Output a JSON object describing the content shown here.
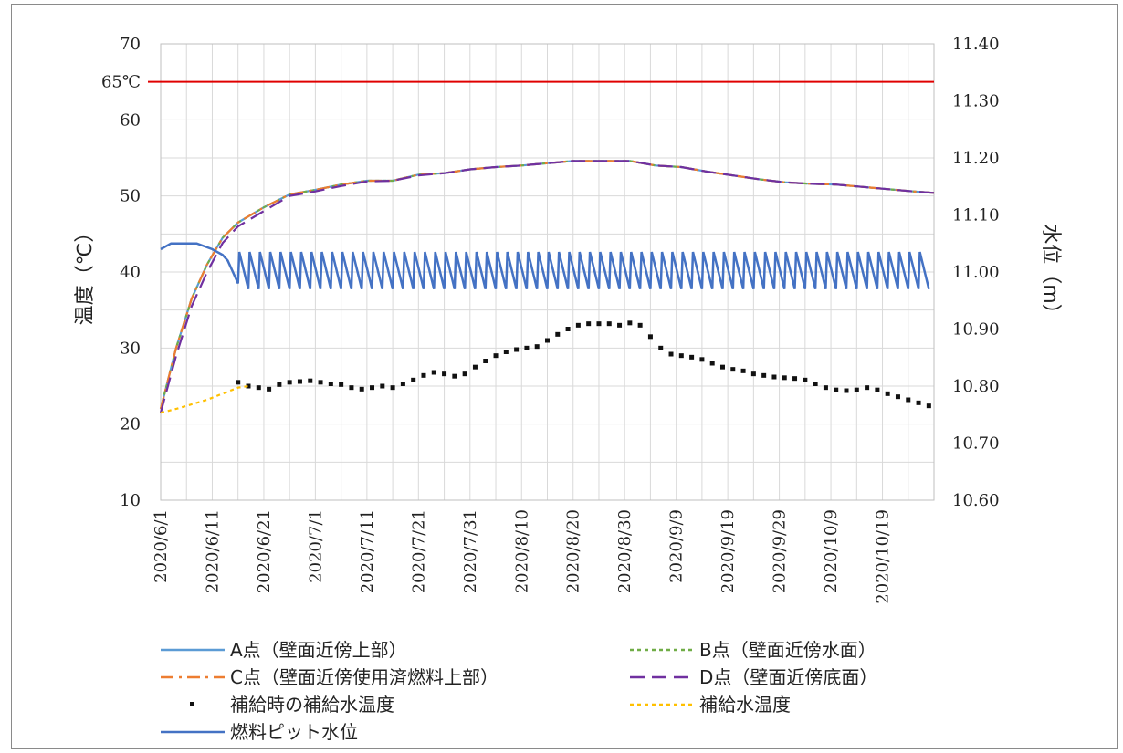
{
  "chart_data": {
    "type": "line",
    "x_start": "2020/6/1",
    "x_end": "2020/10/29",
    "x_tick_labels": [
      "2020/6/1",
      "2020/6/11",
      "2020/6/21",
      "2020/7/1",
      "2020/7/11",
      "2020/7/21",
      "2020/7/31",
      "2020/8/10",
      "2020/8/20",
      "2020/8/30",
      "2020/9/9",
      "2020/9/19",
      "2020/9/29",
      "2020/10/9",
      "2020/10/19"
    ],
    "y_left": {
      "label": "温度（℃）",
      "min": 10,
      "max": 70,
      "ticks": [
        "70",
        "60",
        "50",
        "40",
        "30",
        "20",
        "10"
      ]
    },
    "y_right": {
      "label": "水位（m）",
      "min": 10.6,
      "max": 11.4,
      "ticks": [
        "11.40",
        "11.30",
        "11.20",
        "11.10",
        "11.00",
        "10.90",
        "10.80",
        "10.70",
        "10.60"
      ]
    },
    "reference_line": {
      "value": 65,
      "label": "65℃",
      "color": "#e00000"
    },
    "grid": true,
    "legend_placement": "bottom",
    "series": [
      {
        "name": "A点（壁面近傍上部）",
        "axis": "left",
        "style": "solid",
        "color": "#5b9bd5",
        "points": [
          [
            "2020/6/1",
            22
          ],
          [
            "2020/6/4",
            30
          ],
          [
            "2020/6/7",
            36.5
          ],
          [
            "2020/6/10",
            41
          ],
          [
            "2020/6/13",
            44.5
          ],
          [
            "2020/6/16",
            46.5
          ],
          [
            "2020/6/21",
            48.5
          ],
          [
            "2020/6/26",
            50.2
          ],
          [
            "2020/7/1",
            50.8
          ],
          [
            "2020/7/6",
            51.5
          ],
          [
            "2020/7/11",
            52
          ],
          [
            "2020/7/16",
            52
          ],
          [
            "2020/7/21",
            52.8
          ],
          [
            "2020/7/26",
            53
          ],
          [
            "2020/7/31",
            53.5
          ],
          [
            "2020/8/5",
            53.8
          ],
          [
            "2020/8/10",
            54
          ],
          [
            "2020/8/15",
            54.3
          ],
          [
            "2020/8/20",
            54.6
          ],
          [
            "2020/8/25",
            54.6
          ],
          [
            "2020/8/31",
            54.6
          ],
          [
            "2020/9/5",
            54
          ],
          [
            "2020/9/10",
            53.8
          ],
          [
            "2020/9/15",
            53.2
          ],
          [
            "2020/9/20",
            52.7
          ],
          [
            "2020/9/25",
            52.2
          ],
          [
            "2020/9/30",
            51.8
          ],
          [
            "2020/10/5",
            51.6
          ],
          [
            "2020/10/10",
            51.5
          ],
          [
            "2020/10/15",
            51.2
          ],
          [
            "2020/10/20",
            50.9
          ],
          [
            "2020/10/25",
            50.6
          ],
          [
            "2020/10/29",
            50.4
          ]
        ]
      },
      {
        "name": "B点（壁面近傍水面）",
        "axis": "left",
        "style": "dotted",
        "color": "#70ad47",
        "points": [
          [
            "2020/6/1",
            22
          ],
          [
            "2020/6/4",
            30
          ],
          [
            "2020/6/7",
            36.5
          ],
          [
            "2020/6/10",
            41
          ],
          [
            "2020/6/13",
            44.5
          ],
          [
            "2020/6/16",
            46.5
          ],
          [
            "2020/6/21",
            48.5
          ],
          [
            "2020/6/26",
            50.2
          ],
          [
            "2020/7/1",
            50.8
          ],
          [
            "2020/7/6",
            51.5
          ],
          [
            "2020/7/11",
            52
          ],
          [
            "2020/7/16",
            52
          ],
          [
            "2020/7/21",
            52.8
          ],
          [
            "2020/7/26",
            53
          ],
          [
            "2020/7/31",
            53.5
          ],
          [
            "2020/8/5",
            53.8
          ],
          [
            "2020/8/10",
            54
          ],
          [
            "2020/8/15",
            54.3
          ],
          [
            "2020/8/20",
            54.6
          ],
          [
            "2020/8/25",
            54.6
          ],
          [
            "2020/8/31",
            54.6
          ],
          [
            "2020/9/5",
            54
          ],
          [
            "2020/9/10",
            53.8
          ],
          [
            "2020/9/15",
            53.2
          ],
          [
            "2020/9/20",
            52.7
          ],
          [
            "2020/9/25",
            52.2
          ],
          [
            "2020/9/30",
            51.8
          ],
          [
            "2020/10/5",
            51.6
          ],
          [
            "2020/10/10",
            51.5
          ],
          [
            "2020/10/15",
            51.2
          ],
          [
            "2020/10/20",
            50.9
          ],
          [
            "2020/10/25",
            50.6
          ],
          [
            "2020/10/29",
            50.4
          ]
        ]
      },
      {
        "name": "C点（壁面近傍使用済燃料上部）",
        "axis": "left",
        "style": "dashdot",
        "color": "#ed7d31",
        "points": [
          [
            "2020/6/1",
            22
          ],
          [
            "2020/6/4",
            30
          ],
          [
            "2020/6/7",
            36.5
          ],
          [
            "2020/6/10",
            41
          ],
          [
            "2020/6/13",
            44.5
          ],
          [
            "2020/6/16",
            46.5
          ],
          [
            "2020/6/21",
            48.5
          ],
          [
            "2020/6/26",
            50.2
          ],
          [
            "2020/7/1",
            50.8
          ],
          [
            "2020/7/6",
            51.5
          ],
          [
            "2020/7/11",
            52
          ],
          [
            "2020/7/16",
            52
          ],
          [
            "2020/7/21",
            52.8
          ],
          [
            "2020/7/26",
            53
          ],
          [
            "2020/7/31",
            53.5
          ],
          [
            "2020/8/5",
            53.8
          ],
          [
            "2020/8/10",
            54
          ],
          [
            "2020/8/15",
            54.3
          ],
          [
            "2020/8/20",
            54.6
          ],
          [
            "2020/8/25",
            54.6
          ],
          [
            "2020/8/31",
            54.6
          ],
          [
            "2020/9/5",
            54
          ],
          [
            "2020/9/10",
            53.8
          ],
          [
            "2020/9/15",
            53.2
          ],
          [
            "2020/9/20",
            52.7
          ],
          [
            "2020/9/25",
            52.2
          ],
          [
            "2020/9/30",
            51.8
          ],
          [
            "2020/10/5",
            51.6
          ],
          [
            "2020/10/10",
            51.5
          ],
          [
            "2020/10/15",
            51.2
          ],
          [
            "2020/10/20",
            50.9
          ],
          [
            "2020/10/25",
            50.6
          ],
          [
            "2020/10/29",
            50.4
          ]
        ]
      },
      {
        "name": "D点（壁面近傍底面）",
        "axis": "left",
        "style": "dashed",
        "color": "#7030a0",
        "points": [
          [
            "2020/6/1",
            21.5
          ],
          [
            "2020/6/4",
            29
          ],
          [
            "2020/6/7",
            35.5
          ],
          [
            "2020/6/10",
            40
          ],
          [
            "2020/6/13",
            43.8
          ],
          [
            "2020/6/16",
            46
          ],
          [
            "2020/6/21",
            48
          ],
          [
            "2020/6/26",
            50
          ],
          [
            "2020/7/1",
            50.6
          ],
          [
            "2020/7/6",
            51.3
          ],
          [
            "2020/7/11",
            51.9
          ],
          [
            "2020/7/16",
            52
          ],
          [
            "2020/7/21",
            52.7
          ],
          [
            "2020/7/26",
            53
          ],
          [
            "2020/7/31",
            53.5
          ],
          [
            "2020/8/5",
            53.8
          ],
          [
            "2020/8/10",
            54
          ],
          [
            "2020/8/15",
            54.3
          ],
          [
            "2020/8/20",
            54.6
          ],
          [
            "2020/8/25",
            54.6
          ],
          [
            "2020/8/31",
            54.6
          ],
          [
            "2020/9/5",
            54
          ],
          [
            "2020/9/10",
            53.8
          ],
          [
            "2020/9/15",
            53.2
          ],
          [
            "2020/9/20",
            52.7
          ],
          [
            "2020/9/25",
            52.2
          ],
          [
            "2020/9/30",
            51.8
          ],
          [
            "2020/10/5",
            51.6
          ],
          [
            "2020/10/10",
            51.5
          ],
          [
            "2020/10/15",
            51.2
          ],
          [
            "2020/10/20",
            50.9
          ],
          [
            "2020/10/25",
            50.6
          ],
          [
            "2020/10/29",
            50.4
          ]
        ]
      },
      {
        "name": "補給時の補給水温度",
        "axis": "left",
        "style": "markers",
        "color": "#111111",
        "points": [
          [
            "2020/6/16",
            25.5
          ],
          [
            "2020/6/18",
            25
          ],
          [
            "2020/6/20",
            24.8
          ],
          [
            "2020/6/22",
            24.6
          ],
          [
            "2020/6/24",
            25.2
          ],
          [
            "2020/6/26",
            25.5
          ],
          [
            "2020/6/28",
            25.6
          ],
          [
            "2020/6/30",
            25.7
          ],
          [
            "2020/7/2",
            25.5
          ],
          [
            "2020/7/4",
            25.3
          ],
          [
            "2020/7/6",
            25.2
          ],
          [
            "2020/7/8",
            24.8
          ],
          [
            "2020/7/10",
            24.6
          ],
          [
            "2020/7/12",
            24.8
          ],
          [
            "2020/7/14",
            25
          ],
          [
            "2020/7/16",
            24.8
          ],
          [
            "2020/7/18",
            25.3
          ],
          [
            "2020/7/20",
            25.8
          ],
          [
            "2020/7/22",
            26.4
          ],
          [
            "2020/7/24",
            26.8
          ],
          [
            "2020/7/26",
            26.6
          ],
          [
            "2020/7/28",
            26.3
          ],
          [
            "2020/7/30",
            26.6
          ],
          [
            "2020/8/1",
            27.5
          ],
          [
            "2020/8/3",
            28.3
          ],
          [
            "2020/8/5",
            29
          ],
          [
            "2020/8/7",
            29.5
          ],
          [
            "2020/8/9",
            29.8
          ],
          [
            "2020/8/11",
            30
          ],
          [
            "2020/8/13",
            30.2
          ],
          [
            "2020/8/15",
            31
          ],
          [
            "2020/8/17",
            31.8
          ],
          [
            "2020/8/19",
            32.5
          ],
          [
            "2020/8/21",
            33
          ],
          [
            "2020/8/23",
            33.2
          ],
          [
            "2020/8/25",
            33.2
          ],
          [
            "2020/8/27",
            33.2
          ],
          [
            "2020/8/29",
            33
          ],
          [
            "2020/8/31",
            33.3
          ],
          [
            "2020/9/2",
            33
          ],
          [
            "2020/9/4",
            31.5
          ],
          [
            "2020/9/6",
            30
          ],
          [
            "2020/9/8",
            29.2
          ],
          [
            "2020/9/10",
            29
          ],
          [
            "2020/9/12",
            28.8
          ],
          [
            "2020/9/14",
            28.5
          ],
          [
            "2020/9/16",
            28
          ],
          [
            "2020/9/18",
            27.5
          ],
          [
            "2020/9/20",
            27.2
          ],
          [
            "2020/9/22",
            27
          ],
          [
            "2020/9/24",
            26.6
          ],
          [
            "2020/9/26",
            26.4
          ],
          [
            "2020/9/28",
            26.2
          ],
          [
            "2020/9/30",
            26.1
          ],
          [
            "2020/10/2",
            26
          ],
          [
            "2020/10/4",
            25.8
          ],
          [
            "2020/10/6",
            25.3
          ],
          [
            "2020/10/8",
            24.8
          ],
          [
            "2020/10/10",
            24.5
          ],
          [
            "2020/10/12",
            24.4
          ],
          [
            "2020/10/14",
            24.5
          ],
          [
            "2020/10/16",
            24.8
          ],
          [
            "2020/10/18",
            24.5
          ],
          [
            "2020/10/20",
            24
          ],
          [
            "2020/10/22",
            23.6
          ],
          [
            "2020/10/24",
            23.2
          ],
          [
            "2020/10/26",
            22.8
          ],
          [
            "2020/10/28",
            22.4
          ]
        ]
      },
      {
        "name": "補給水温度",
        "axis": "left",
        "style": "dotted",
        "color": "#ffc000",
        "points": [
          [
            "2020/6/1",
            21.5
          ],
          [
            "2020/6/4",
            22
          ],
          [
            "2020/6/7",
            22.6
          ],
          [
            "2020/6/10",
            23.2
          ],
          [
            "2020/6/13",
            24
          ],
          [
            "2020/6/16",
            24.8
          ],
          [
            "2020/6/18",
            25
          ]
        ]
      },
      {
        "name": "燃料ピット水位",
        "axis": "right",
        "style": "sawtooth",
        "color": "#4472c4",
        "start_points": [
          [
            "2020/6/1",
            11.04
          ],
          [
            "2020/6/3",
            11.05
          ],
          [
            "2020/6/6",
            11.05
          ],
          [
            "2020/6/8",
            11.05
          ],
          [
            "2020/6/11",
            11.04
          ],
          [
            "2020/6/13",
            11.03
          ],
          [
            "2020/6/14",
            11.02
          ],
          [
            "2020/6/15",
            11.0
          ],
          [
            "2020/6/16",
            10.98
          ]
        ],
        "cycle_days": 2,
        "low": 10.97,
        "high": 11.035,
        "end": "2020/10/29"
      }
    ]
  }
}
